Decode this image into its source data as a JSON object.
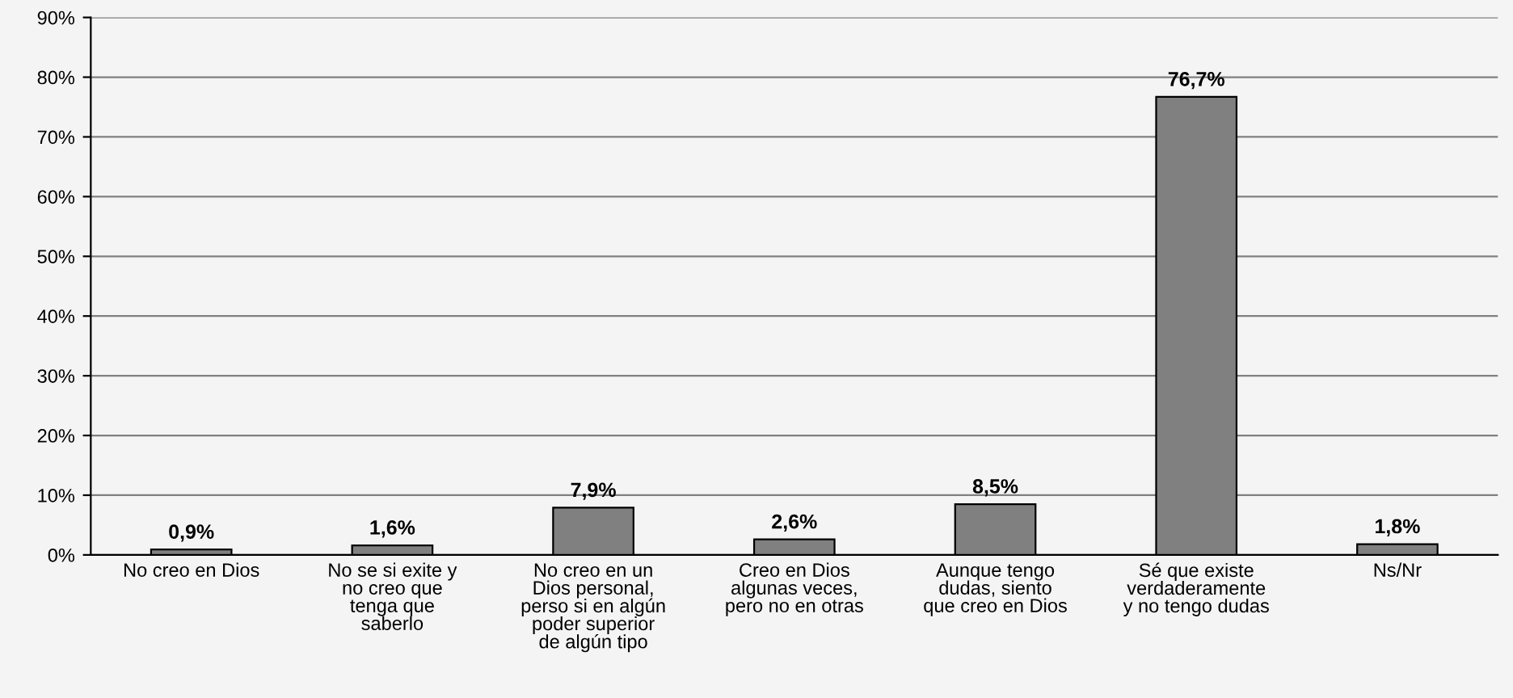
{
  "chart_data": {
    "type": "bar",
    "categories": [
      "No creo en Dios",
      "No se si exite y\nno creo que\ntenga que\nsaberlo",
      "No creo en un\nDios personal,\nperso si en algún\npoder superior\nde algún tipo",
      "Creo en Dios\nalgunas veces,\npero no en otras",
      "Aunque tengo\ndudas, siento\nque creo en Dios",
      "Sé que existe\nverdaderamente\ny no tengo dudas",
      "Ns/Nr"
    ],
    "values": [
      0.9,
      1.6,
      7.9,
      2.6,
      8.5,
      76.7,
      1.8
    ],
    "value_labels": [
      "0,9%",
      "1,6%",
      "7,9%",
      "2,6%",
      "8,5%",
      "76,7%",
      "1,8%"
    ],
    "color": "#808080",
    "ylim": [
      0,
      90
    ],
    "yticks": [
      {
        "value": 0,
        "label": "0%"
      },
      {
        "value": 10,
        "label": "10%"
      },
      {
        "value": 20,
        "label": "20%"
      },
      {
        "value": 30,
        "label": "30%"
      },
      {
        "value": 40,
        "label": "40%"
      },
      {
        "value": 50,
        "label": "50%"
      },
      {
        "value": 60,
        "label": "60%"
      },
      {
        "value": 70,
        "label": "70%"
      },
      {
        "value": 80,
        "label": "80%"
      },
      {
        "value": 90,
        "label": "90%"
      }
    ],
    "grid": "y",
    "legend": false
  }
}
